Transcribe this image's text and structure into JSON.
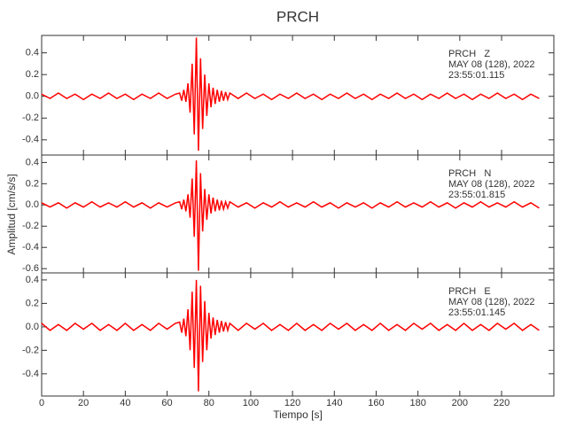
{
  "title": "PRCH",
  "x_label": "Tiempo [s]",
  "y_label": "Amplitud [cm/s/s]",
  "x": [
    0,
    4,
    8,
    12,
    16,
    20,
    24,
    28,
    32,
    36,
    40,
    44,
    48,
    52,
    56,
    60,
    64,
    66,
    67,
    68,
    69,
    70,
    71,
    72,
    73,
    74,
    75,
    76,
    77,
    78,
    79,
    80,
    81,
    82,
    83,
    84,
    85,
    86,
    87,
    88,
    89,
    90,
    94,
    98,
    102,
    106,
    110,
    114,
    118,
    122,
    126,
    130,
    134,
    138,
    142,
    146,
    150,
    154,
    158,
    162,
    166,
    170,
    174,
    178,
    182,
    186,
    190,
    194,
    198,
    202,
    206,
    210,
    214,
    218,
    222,
    226,
    230,
    234,
    238
  ],
  "chart_data": [
    {
      "type": "line",
      "annotations": [
        "PRCH   Z",
        "MAY 08 (128), 2022",
        "23:55:01.115"
      ],
      "xlim": [
        0,
        245
      ],
      "ylim": [
        -0.54,
        0.56
      ],
      "yticks": [
        -0.4,
        -0.2,
        {
          "value": 0,
          "label": "0.0"
        },
        0.2,
        0.4
      ],
      "series": [
        {
          "color": "#ff0000",
          "values": [
            0.02,
            -0.02,
            0.03,
            -0.02,
            0.02,
            -0.03,
            0.02,
            -0.02,
            0.03,
            -0.02,
            0.02,
            -0.03,
            0.02,
            -0.02,
            0.03,
            -0.02,
            0.02,
            0.03,
            -0.04,
            0.06,
            -0.05,
            0.12,
            -0.15,
            0.3,
            -0.35,
            0.54,
            -0.5,
            0.35,
            -0.3,
            0.2,
            -0.18,
            0.12,
            -0.1,
            0.08,
            -0.07,
            0.06,
            -0.05,
            0.05,
            -0.04,
            0.04,
            -0.03,
            0.03,
            -0.02,
            0.03,
            -0.02,
            0.02,
            -0.03,
            0.02,
            -0.02,
            0.03,
            -0.02,
            0.02,
            -0.03,
            0.02,
            -0.02,
            0.03,
            -0.02,
            0.02,
            -0.03,
            0.02,
            -0.02,
            0.03,
            -0.02,
            0.02,
            -0.03,
            0.02,
            -0.02,
            0.03,
            -0.02,
            0.02,
            -0.03,
            0.02,
            -0.02,
            0.03,
            -0.02,
            0.02,
            -0.03,
            0.02,
            -0.02
          ]
        }
      ]
    },
    {
      "type": "line",
      "annotations": [
        "PRCH   N",
        "MAY 08 (128), 2022",
        "23:55:01.815"
      ],
      "xlim": [
        0,
        245
      ],
      "ylim": [
        -0.64,
        0.47
      ],
      "yticks": [
        -0.6,
        -0.4,
        -0.2,
        {
          "value": 0,
          "label": "0.0"
        },
        0.2,
        0.4
      ],
      "series": [
        {
          "color": "#ff0000",
          "values": [
            0.02,
            -0.02,
            0.02,
            -0.03,
            0.02,
            -0.02,
            0.03,
            -0.02,
            0.02,
            -0.02,
            0.03,
            -0.02,
            0.02,
            -0.03,
            0.02,
            -0.02,
            0.02,
            0.03,
            -0.04,
            0.05,
            -0.06,
            0.1,
            -0.12,
            0.25,
            -0.3,
            0.42,
            -0.62,
            0.3,
            -0.25,
            0.15,
            -0.14,
            0.1,
            -0.08,
            0.07,
            -0.06,
            0.05,
            -0.05,
            0.04,
            -0.04,
            0.03,
            -0.03,
            0.03,
            -0.02,
            0.02,
            -0.03,
            0.02,
            -0.02,
            0.03,
            -0.02,
            0.02,
            -0.02,
            0.03,
            -0.02,
            0.02,
            -0.03,
            0.02,
            -0.02,
            0.02,
            -0.03,
            0.02,
            -0.02,
            0.03,
            -0.02,
            0.02,
            -0.02,
            0.03,
            -0.02,
            0.02,
            -0.03,
            0.02,
            -0.02,
            0.03,
            -0.02,
            0.02,
            -0.02,
            0.03,
            -0.02,
            0.02,
            -0.03
          ]
        }
      ]
    },
    {
      "type": "line",
      "annotations": [
        "PRCH   E",
        "MAY 08 (128), 2022",
        "23:55:01.145"
      ],
      "xlim": [
        0,
        245
      ],
      "ylim": [
        -0.59,
        0.46
      ],
      "yticks": [
        -0.4,
        -0.2,
        {
          "value": 0,
          "label": "0.0"
        },
        0.2,
        0.4
      ],
      "xticks": [
        0,
        20,
        40,
        60,
        80,
        100,
        120,
        140,
        160,
        180,
        200,
        220
      ],
      "series": [
        {
          "color": "#ff0000",
          "values": [
            0.03,
            -0.03,
            0.02,
            -0.03,
            0.03,
            -0.02,
            0.03,
            -0.03,
            0.02,
            -0.03,
            0.03,
            -0.03,
            0.02,
            -0.03,
            0.03,
            -0.02,
            0.03,
            0.04,
            -0.05,
            0.07,
            -0.08,
            0.15,
            -0.2,
            0.3,
            -0.35,
            0.4,
            -0.55,
            0.35,
            -0.3,
            0.22,
            -0.2,
            0.12,
            -0.1,
            0.08,
            -0.07,
            0.06,
            -0.05,
            0.05,
            -0.04,
            0.04,
            -0.03,
            0.03,
            -0.03,
            0.03,
            -0.02,
            0.03,
            -0.03,
            0.02,
            -0.03,
            0.03,
            -0.03,
            0.02,
            -0.03,
            0.03,
            -0.02,
            0.03,
            -0.03,
            0.02,
            -0.03,
            0.03,
            -0.03,
            0.02,
            -0.03,
            0.03,
            -0.02,
            0.03,
            -0.03,
            0.02,
            -0.03,
            0.03,
            -0.03,
            0.02,
            -0.03,
            0.03,
            -0.02,
            0.03,
            -0.03,
            0.02,
            -0.03
          ]
        }
      ]
    }
  ]
}
